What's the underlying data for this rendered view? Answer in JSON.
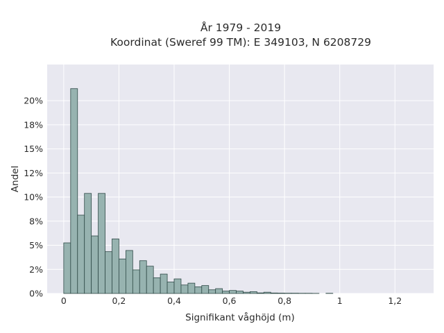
{
  "chart_data": {
    "type": "bar",
    "title_line1": "År 1979 - 2019",
    "title_line2": "Koordinat (Sweref 99 TM): E 349103, N 6208729",
    "xlabel": "Signifikant våghöjd (m)",
    "ylabel": "Andel",
    "xlim": [
      -0.06,
      1.34
    ],
    "ylim": [
      0,
      0.2375
    ],
    "bin_width": 0.025,
    "x_ticks": [
      {
        "value": 0,
        "label": "0"
      },
      {
        "value": 0.2,
        "label": "0,2"
      },
      {
        "value": 0.4,
        "label": "0,4"
      },
      {
        "value": 0.6,
        "label": "0,6"
      },
      {
        "value": 0.8,
        "label": "0,8"
      },
      {
        "value": 1.0,
        "label": "1"
      },
      {
        "value": 1.2,
        "label": "1,2"
      }
    ],
    "y_ticks": [
      {
        "value": 0,
        "label": "0%"
      },
      {
        "value": 0.025,
        "label": "2%"
      },
      {
        "value": 0.05,
        "label": "5%"
      },
      {
        "value": 0.075,
        "label": "8%"
      },
      {
        "value": 0.1,
        "label": "10%"
      },
      {
        "value": 0.125,
        "label": "12%"
      },
      {
        "value": 0.15,
        "label": "15%"
      },
      {
        "value": 0.175,
        "label": "18%"
      },
      {
        "value": 0.2,
        "label": "20%"
      }
    ],
    "bins": [
      {
        "x0": 0.0,
        "value": 0.0525
      },
      {
        "x0": 0.025,
        "value": 0.2125
      },
      {
        "x0": 0.05,
        "value": 0.0813
      },
      {
        "x0": 0.075,
        "value": 0.1038
      },
      {
        "x0": 0.1,
        "value": 0.0597
      },
      {
        "x0": 0.125,
        "value": 0.1038
      },
      {
        "x0": 0.15,
        "value": 0.0434
      },
      {
        "x0": 0.175,
        "value": 0.0566
      },
      {
        "x0": 0.2,
        "value": 0.0358
      },
      {
        "x0": 0.225,
        "value": 0.0446
      },
      {
        "x0": 0.25,
        "value": 0.0245
      },
      {
        "x0": 0.275,
        "value": 0.034
      },
      {
        "x0": 0.3,
        "value": 0.0283
      },
      {
        "x0": 0.325,
        "value": 0.0163
      },
      {
        "x0": 0.35,
        "value": 0.0201
      },
      {
        "x0": 0.375,
        "value": 0.0119
      },
      {
        "x0": 0.4,
        "value": 0.0151
      },
      {
        "x0": 0.425,
        "value": 0.0088
      },
      {
        "x0": 0.45,
        "value": 0.0107
      },
      {
        "x0": 0.475,
        "value": 0.0069
      },
      {
        "x0": 0.5,
        "value": 0.0082
      },
      {
        "x0": 0.525,
        "value": 0.0038
      },
      {
        "x0": 0.55,
        "value": 0.005
      },
      {
        "x0": 0.575,
        "value": 0.0025
      },
      {
        "x0": 0.6,
        "value": 0.0031
      },
      {
        "x0": 0.625,
        "value": 0.0025
      },
      {
        "x0": 0.65,
        "value": 0.0013
      },
      {
        "x0": 0.675,
        "value": 0.0019
      },
      {
        "x0": 0.7,
        "value": 0.0006
      },
      {
        "x0": 0.725,
        "value": 0.0013
      },
      {
        "x0": 0.75,
        "value": 0.0005
      },
      {
        "x0": 0.775,
        "value": 0.0004
      },
      {
        "x0": 0.8,
        "value": 0.0003
      },
      {
        "x0": 0.825,
        "value": 0.0003
      },
      {
        "x0": 0.85,
        "value": 0.0002
      },
      {
        "x0": 0.875,
        "value": 0.0002
      },
      {
        "x0": 0.9,
        "value": 0.0001
      },
      {
        "x0": 0.95,
        "value": 0.0002
      }
    ],
    "colors": {
      "bar_fill": "#97b3b0",
      "bar_edge": "#2f4a47",
      "plot_bg": "#e8e8f0",
      "grid": "#ffffff"
    },
    "grid": true
  }
}
